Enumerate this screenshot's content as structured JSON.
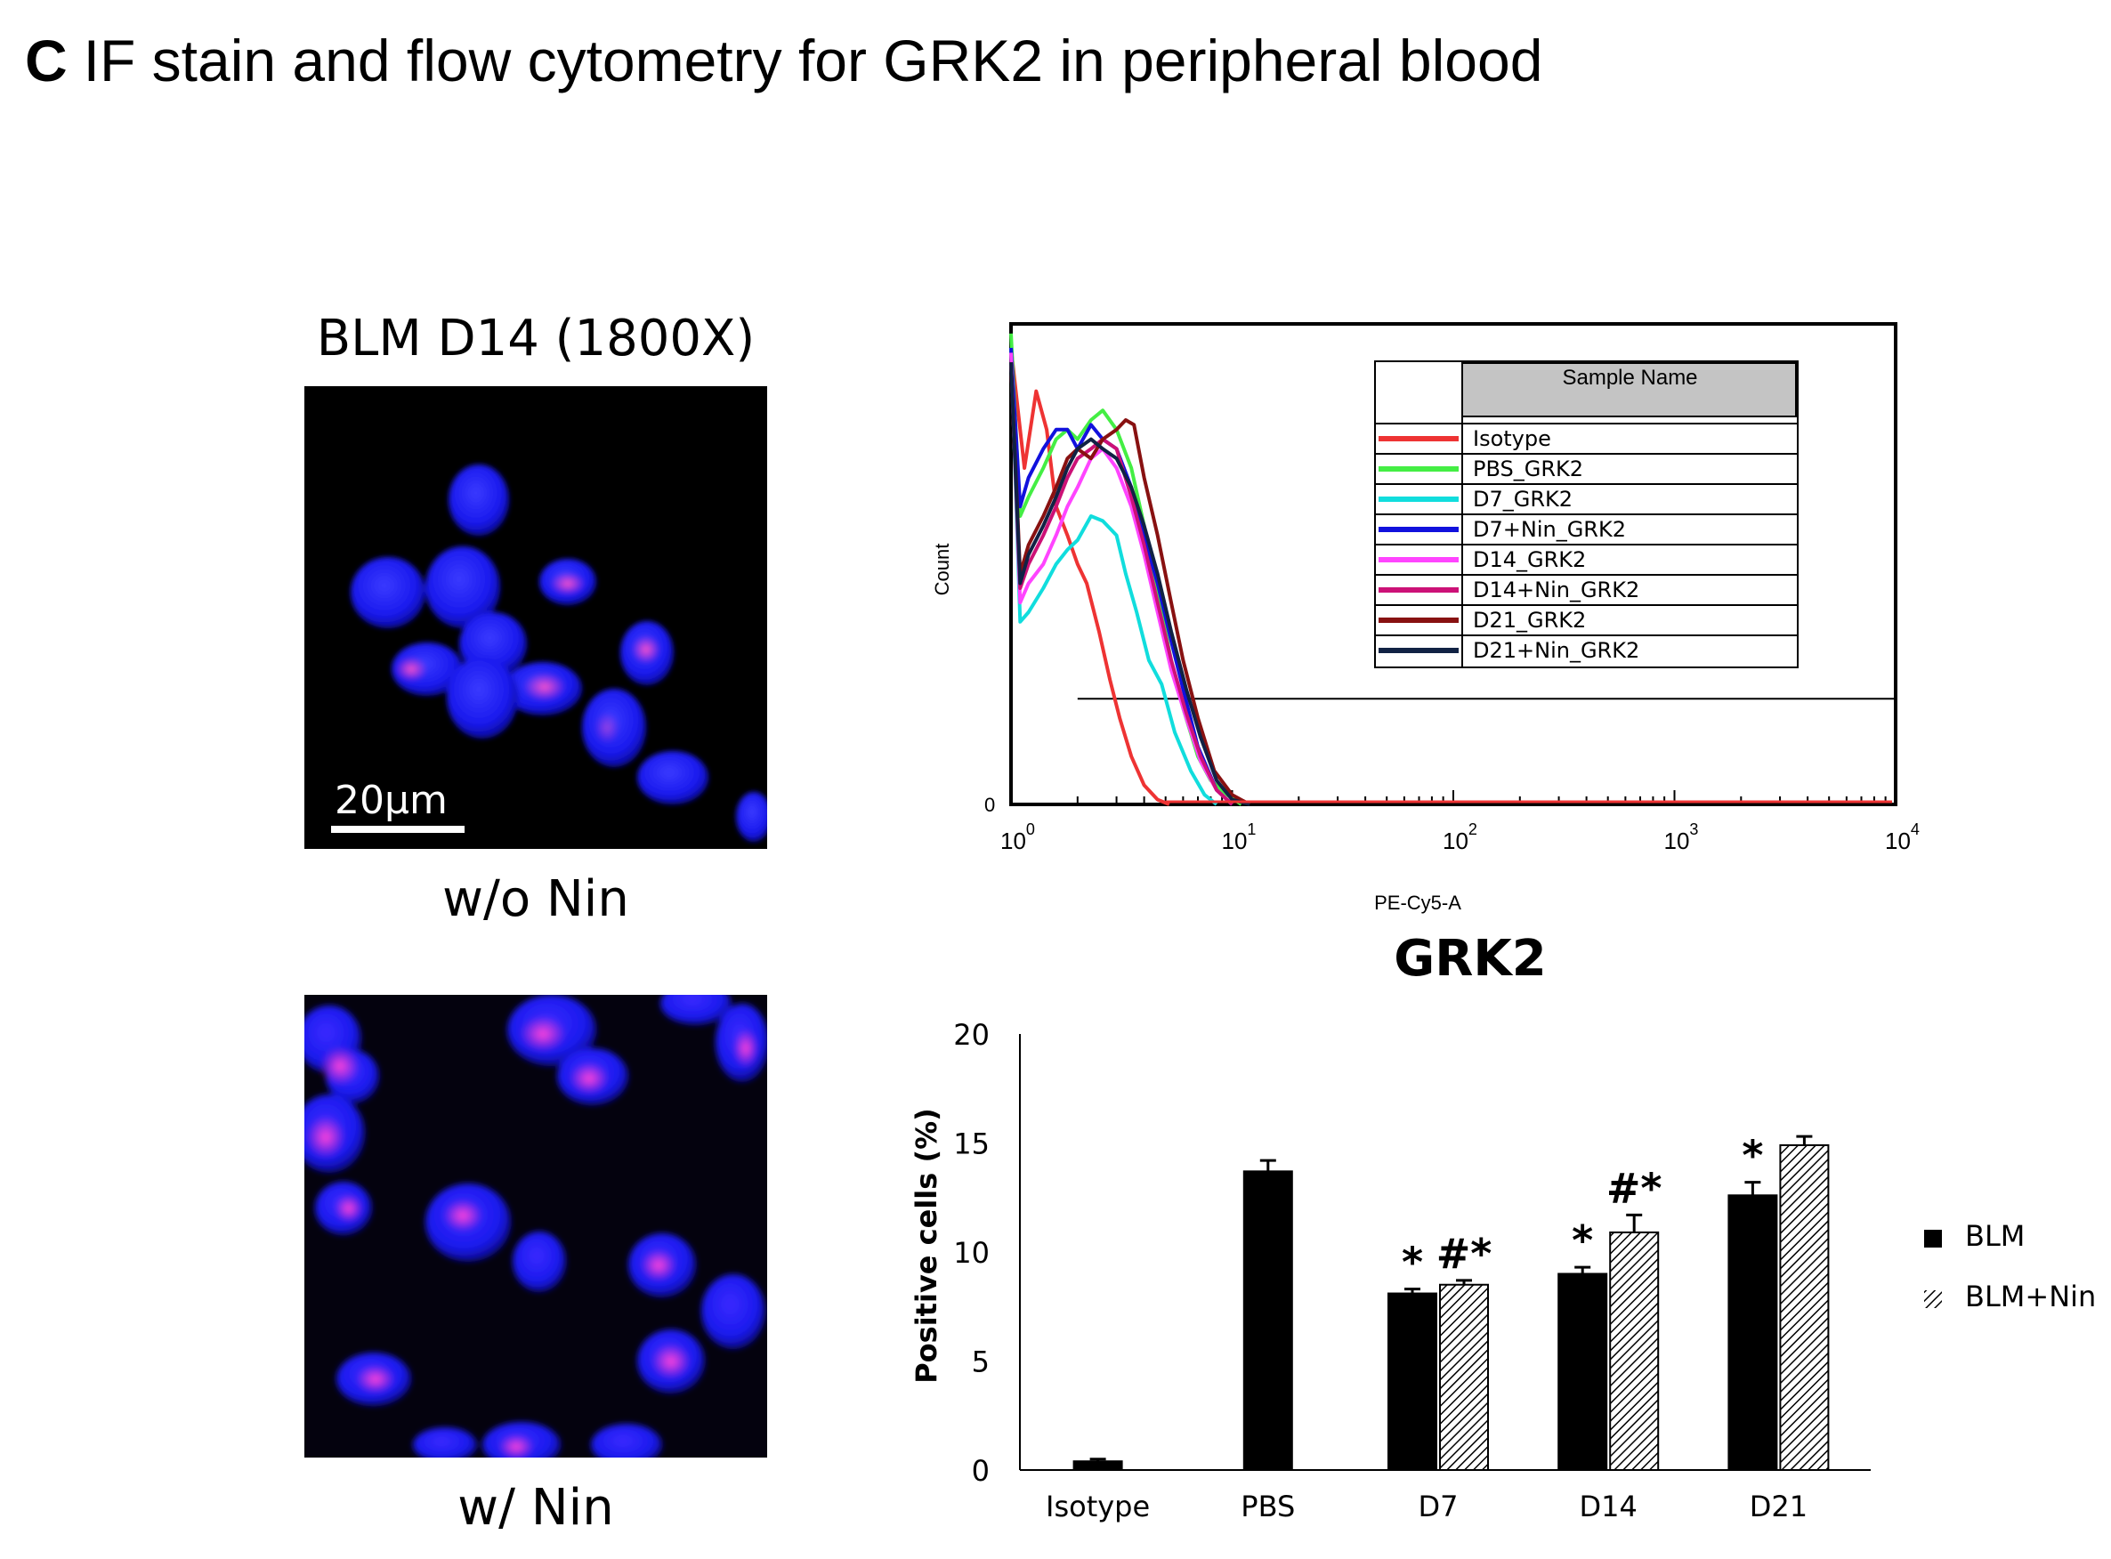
{
  "panel": {
    "letter": "C",
    "title": "IF stain and flow cytometry for GRK2 in peripheral blood"
  },
  "micrographs": {
    "top_title": "BLM D14 (1800X)",
    "scale_bar_label": "20µm",
    "top_caption": "w/o Nin",
    "bottom_caption": "w/ Nin"
  },
  "colors": {
    "nucleus_blue": "#1a1aff",
    "stain_magenta": "#ff33cc",
    "background": "#000000"
  },
  "chart_data": [
    {
      "type": "line",
      "title": "GRK2",
      "xlabel": "PE-Cy5-A",
      "ylabel": "Count",
      "x_scale": "log",
      "xlim": [
        1,
        10000
      ],
      "x_ticks": [
        {
          "base": "10",
          "exp": "0"
        },
        {
          "base": "10",
          "exp": "1"
        },
        {
          "base": "10",
          "exp": "2"
        },
        {
          "base": "10",
          "exp": "3"
        },
        {
          "base": "10",
          "exp": "4"
        }
      ],
      "y_tick_label": "0",
      "legend": {
        "header": "Sample Name",
        "placement": "top-right"
      },
      "series": [
        {
          "name": "Isotype",
          "color": "#ee3333",
          "points": [
            [
              1,
              95
            ],
            [
              1.15,
              70
            ],
            [
              1.3,
              86
            ],
            [
              1.45,
              78
            ],
            [
              1.6,
              62
            ],
            [
              1.8,
              56
            ],
            [
              2.0,
              50
            ],
            [
              2.2,
              46
            ],
            [
              2.5,
              36
            ],
            [
              2.8,
              26
            ],
            [
              3.1,
              18
            ],
            [
              3.5,
              10
            ],
            [
              4.0,
              4
            ],
            [
              4.6,
              1
            ],
            [
              5.2,
              0
            ]
          ]
        },
        {
          "name": "PBS_GRK2",
          "color": "#44ee44",
          "points": [
            [
              1,
              98
            ],
            [
              1.1,
              60
            ],
            [
              1.2,
              64
            ],
            [
              1.4,
              70
            ],
            [
              1.6,
              76
            ],
            [
              1.8,
              78
            ],
            [
              2.0,
              76
            ],
            [
              2.3,
              80
            ],
            [
              2.6,
              82
            ],
            [
              3.0,
              78
            ],
            [
              3.5,
              70
            ],
            [
              4.0,
              58
            ],
            [
              4.6,
              44
            ],
            [
              5.3,
              30
            ],
            [
              6.0,
              20
            ],
            [
              7.0,
              10
            ],
            [
              8.0,
              5
            ],
            [
              9.5,
              2
            ],
            [
              11,
              0
            ]
          ]
        },
        {
          "name": "D7_GRK2",
          "color": "#11dddd",
          "points": [
            [
              1,
              95
            ],
            [
              1.1,
              38
            ],
            [
              1.2,
              40
            ],
            [
              1.4,
              45
            ],
            [
              1.6,
              50
            ],
            [
              1.8,
              53
            ],
            [
              2.0,
              55
            ],
            [
              2.3,
              60
            ],
            [
              2.6,
              59
            ],
            [
              3.0,
              56
            ],
            [
              3.3,
              48
            ],
            [
              3.7,
              40
            ],
            [
              4.2,
              30
            ],
            [
              4.8,
              25
            ],
            [
              5.5,
              15
            ],
            [
              6.5,
              7
            ],
            [
              7.5,
              2
            ],
            [
              8.5,
              0
            ]
          ]
        },
        {
          "name": "D7+Nin_GRK2",
          "color": "#1111dd",
          "points": [
            [
              1,
              95
            ],
            [
              1.1,
              62
            ],
            [
              1.2,
              68
            ],
            [
              1.4,
              74
            ],
            [
              1.6,
              78
            ],
            [
              1.8,
              78
            ],
            [
              2.0,
              74
            ],
            [
              2.3,
              79
            ],
            [
              2.6,
              76
            ],
            [
              3.0,
              74
            ],
            [
              3.5,
              66
            ],
            [
              4.0,
              56
            ],
            [
              4.6,
              46
            ],
            [
              5.3,
              34
            ],
            [
              6.0,
              24
            ],
            [
              7.0,
              12
            ],
            [
              8.5,
              3
            ],
            [
              10,
              0
            ]
          ]
        },
        {
          "name": "D14_GRK2",
          "color": "#ff44ff",
          "points": [
            [
              1,
              94
            ],
            [
              1.1,
              42
            ],
            [
              1.2,
              46
            ],
            [
              1.4,
              50
            ],
            [
              1.6,
              56
            ],
            [
              1.8,
              62
            ],
            [
              2.0,
              66
            ],
            [
              2.3,
              72
            ],
            [
              2.6,
              74
            ],
            [
              3.0,
              70
            ],
            [
              3.5,
              62
            ],
            [
              4.0,
              52
            ],
            [
              4.6,
              40
            ],
            [
              5.3,
              28
            ],
            [
              6.2,
              18
            ],
            [
              7.2,
              9
            ],
            [
              8.5,
              3
            ],
            [
              10,
              0
            ]
          ]
        },
        {
          "name": "D14+Nin_GRK2",
          "color": "#cc1177",
          "points": [
            [
              1,
              92
            ],
            [
              1.1,
              45
            ],
            [
              1.2,
              50
            ],
            [
              1.4,
              56
            ],
            [
              1.6,
              62
            ],
            [
              1.8,
              68
            ],
            [
              2.0,
              72
            ],
            [
              2.3,
              74
            ],
            [
              2.6,
              76
            ],
            [
              3.0,
              74
            ],
            [
              3.5,
              64
            ],
            [
              4.0,
              54
            ],
            [
              4.6,
              42
            ],
            [
              5.3,
              30
            ],
            [
              6.2,
              19
            ],
            [
              7.2,
              10
            ],
            [
              8.5,
              3
            ],
            [
              10,
              0
            ]
          ]
        },
        {
          "name": "D21_GRK2",
          "color": "#881111",
          "points": [
            [
              1,
              92
            ],
            [
              1.1,
              48
            ],
            [
              1.2,
              54
            ],
            [
              1.4,
              60
            ],
            [
              1.6,
              66
            ],
            [
              1.8,
              72
            ],
            [
              2.0,
              74
            ],
            [
              2.3,
              72
            ],
            [
              2.6,
              76
            ],
            [
              3.0,
              78
            ],
            [
              3.3,
              80
            ],
            [
              3.6,
              79
            ],
            [
              4.0,
              68
            ],
            [
              4.6,
              56
            ],
            [
              5.3,
              42
            ],
            [
              6.0,
              30
            ],
            [
              7.0,
              18
            ],
            [
              8.3,
              7
            ],
            [
              10,
              2
            ],
            [
              12,
              0
            ]
          ]
        },
        {
          "name": "D21+Nin_GRK2",
          "color": "#112244",
          "points": [
            [
              1,
              92
            ],
            [
              1.1,
              46
            ],
            [
              1.2,
              52
            ],
            [
              1.4,
              58
            ],
            [
              1.6,
              64
            ],
            [
              1.8,
              70
            ],
            [
              2.0,
              74
            ],
            [
              2.3,
              76
            ],
            [
              2.6,
              74
            ],
            [
              3.0,
              72
            ],
            [
              3.5,
              66
            ],
            [
              4.0,
              58
            ],
            [
              4.6,
              48
            ],
            [
              5.3,
              36
            ],
            [
              6.2,
              24
            ],
            [
              7.2,
              14
            ],
            [
              8.5,
              5
            ],
            [
              10,
              1
            ],
            [
              12,
              0
            ]
          ]
        }
      ],
      "gate": {
        "x_start": 2.0,
        "x_end": 10000,
        "level": 22
      }
    },
    {
      "type": "bar",
      "title": "GRK2",
      "ylabel": "Positive cells (%)",
      "ylim": [
        0,
        20
      ],
      "y_ticks": [
        "0",
        "5",
        "10",
        "15",
        "20"
      ],
      "categories": [
        "Isotype",
        "PBS",
        "D7",
        "D14",
        "D21"
      ],
      "legend": {
        "placement": "right"
      },
      "series": [
        {
          "name": "BLM",
          "pattern": "solid-black",
          "values": [
            0.4,
            13.7,
            8.1,
            9.0,
            12.6
          ],
          "errors": [
            0.1,
            0.5,
            0.2,
            0.3,
            0.6
          ],
          "annotations": [
            "",
            "",
            "*",
            "*",
            "*"
          ]
        },
        {
          "name": "BLM+Nin",
          "pattern": "hatched",
          "values": [
            null,
            null,
            8.5,
            10.9,
            14.9
          ],
          "errors": [
            null,
            null,
            0.2,
            0.8,
            0.4
          ],
          "annotations": [
            "",
            "",
            "#*",
            "#*",
            ""
          ]
        }
      ]
    }
  ]
}
